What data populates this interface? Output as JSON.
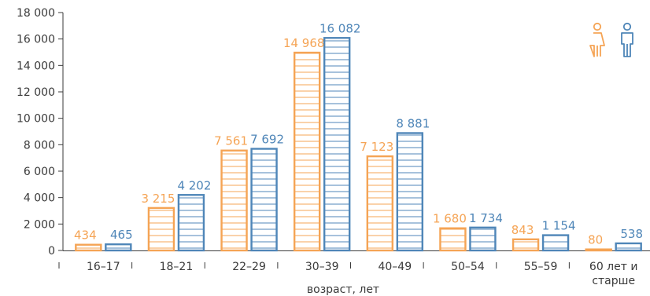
{
  "chart_data": {
    "type": "bar",
    "title": "",
    "xlabel": "возраст, лет",
    "ylabel": "",
    "ylim": [
      0,
      18000
    ],
    "yticks": [
      "0",
      "2 000",
      "4 000",
      "6 000",
      "8 000",
      "10 000",
      "12 000",
      "14 000",
      "16 000",
      "18 000"
    ],
    "categories": [
      "16–17",
      "18–21",
      "22–29",
      "30–39",
      "40–49",
      "50–54",
      "55–59",
      "60 лет и старше"
    ],
    "series": [
      {
        "values": [
          434,
          3215,
          7561,
          14968,
          7123,
          1680,
          843,
          80
        ],
        "labels": [
          "434",
          "3 215",
          "7 561",
          "14 968",
          "7 123",
          "1 680",
          "843",
          "80"
        ],
        "color": "#F5A455",
        "icon": "female-icon"
      },
      {
        "values": [
          465,
          4202,
          7692,
          16082,
          8881,
          1734,
          1154,
          538
        ],
        "labels": [
          "465",
          "4 202",
          "7 692",
          "16 082",
          "8 881",
          "1 734",
          "1 154",
          "538"
        ],
        "color": "#4F86B8",
        "icon": "male-icon"
      }
    ],
    "legend": "top-right",
    "grid": false
  }
}
